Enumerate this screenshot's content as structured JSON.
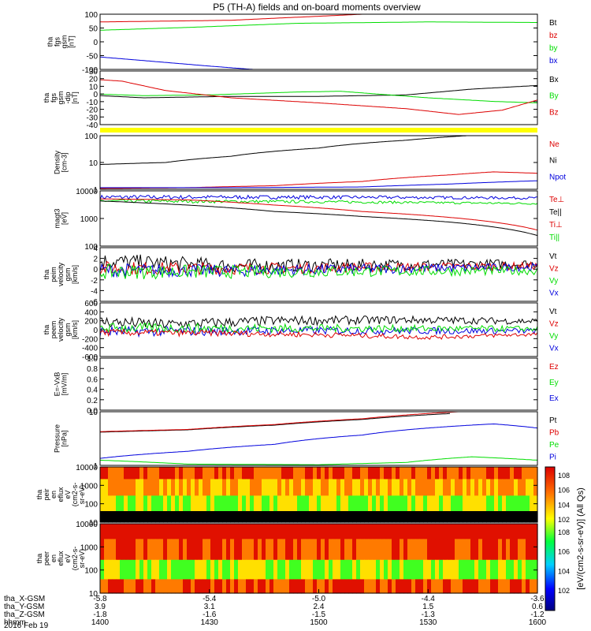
{
  "title": "P5 (TH-A) fields and on-board moments overview",
  "xaxis": {
    "rows": [
      {
        "label": "tha_X-GSM",
        "values": [
          "-5.8",
          "-5.4",
          "-5.0",
          "-4.4",
          "-3.6"
        ]
      },
      {
        "label": "tha_Y-GSM",
        "values": [
          "3.9",
          "3.1",
          "2.4",
          "1.5",
          "0.6"
        ]
      },
      {
        "label": "tha_Z-GSM",
        "values": [
          "-1.8",
          "-1.6",
          "-1.5",
          "-1.3",
          "-1.2"
        ]
      },
      {
        "label": "hhmm",
        "values": [
          "1400",
          "1430",
          "1500",
          "1530",
          "1600"
        ]
      }
    ],
    "date": "2016 Feb 19"
  },
  "colors": {
    "black": "#000000",
    "red": "#dd0000",
    "green": "#00dd00",
    "blue": "#0000dd",
    "yellow": "#ffff00"
  },
  "colorbar_label": "[eV/(cm2-s-sr-eV)] (All Qs)",
  "chart_data": [
    {
      "type": "line",
      "id": "p1",
      "ylabel": [
        "tha",
        "fgs",
        "gsm",
        "[nT]"
      ],
      "ylim": [
        -100,
        100
      ],
      "yticks": [
        "100",
        "50",
        "0",
        "-50",
        "-100"
      ],
      "legend": [
        {
          "text": "Bt",
          "color": "#000000"
        },
        {
          "text": "bz",
          "color": "#dd0000"
        },
        {
          "text": "by",
          "color": "#00dd00"
        },
        {
          "text": "bx",
          "color": "#0000dd"
        }
      ],
      "series": [
        {
          "color": "#000000",
          "x": [
            0,
            1
          ],
          "y": [
            100,
            100
          ]
        },
        {
          "color": "#dd0000",
          "x": [
            0,
            0.3,
            0.6,
            1
          ],
          "y": [
            72,
            78,
            100,
            100
          ]
        },
        {
          "color": "#00dd00",
          "x": [
            0,
            0.2,
            0.45,
            0.75,
            1
          ],
          "y": [
            42,
            52,
            67,
            72,
            70
          ]
        },
        {
          "color": "#0000dd",
          "x": [
            0,
            0.1,
            0.25,
            0.35
          ],
          "y": [
            -55,
            -68,
            -88,
            -100
          ]
        }
      ]
    },
    {
      "type": "line",
      "id": "p2",
      "ylabel": [
        "tha",
        "fgs",
        "gsm",
        "-dip",
        "[nT]"
      ],
      "ylim": [
        -42,
        32
      ],
      "yticks": [
        "30",
        "20",
        "10",
        "0",
        "-10",
        "-20",
        "-30",
        "-40"
      ],
      "legend": [
        {
          "text": "Bx",
          "color": "#000000"
        },
        {
          "text": "By",
          "color": "#00dd00"
        },
        {
          "text": "Bz",
          "color": "#dd0000"
        }
      ],
      "series": [
        {
          "color": "#000000",
          "x": [
            0,
            0.1,
            0.3,
            0.5,
            0.7,
            0.85,
            1
          ],
          "y": [
            -2,
            -5,
            -3,
            -3,
            -1,
            7,
            12
          ]
        },
        {
          "color": "#00dd00",
          "x": [
            0,
            0.1,
            0.25,
            0.45,
            0.55,
            0.75,
            0.9,
            1
          ],
          "y": [
            0,
            -2,
            -1,
            3,
            4,
            -5,
            -10,
            -12
          ]
        },
        {
          "color": "#dd0000",
          "x": [
            0,
            0.05,
            0.15,
            0.3,
            0.5,
            0.7,
            0.82,
            0.92,
            1
          ],
          "y": [
            20,
            18,
            5,
            -5,
            -12,
            -20,
            -28,
            -22,
            -8
          ]
        }
      ]
    },
    {
      "type": "line",
      "id": "p3",
      "scale": "log",
      "ylabel": [
        "Density",
        "[cm-3]"
      ],
      "ylim": [
        0.5,
        200
      ],
      "yticks": [
        "100",
        "10",
        "1"
      ],
      "legend": [
        {
          "text": "Ne",
          "color": "#dd0000"
        },
        {
          "text": "Ni",
          "color": "#000000"
        },
        {
          "text": "Npot",
          "color": "#0000dd"
        }
      ],
      "series": [
        {
          "color": "#000000",
          "x": [
            0,
            0.15,
            0.3,
            0.5,
            0.7,
            0.84
          ],
          "y": [
            8,
            10,
            20,
            50,
            120,
            200
          ]
        },
        {
          "color": "#dd0000",
          "x": [
            0,
            0.2,
            0.4,
            0.6,
            0.8,
            0.9,
            1
          ],
          "y": [
            0.55,
            0.6,
            0.75,
            1.2,
            2.5,
            3.5,
            3
          ]
        },
        {
          "color": "#0000dd",
          "x": [
            0,
            0.3,
            0.6,
            0.8,
            1
          ],
          "y": [
            0.6,
            0.6,
            0.65,
            0.9,
            1.3
          ]
        }
      ]
    },
    {
      "type": "line",
      "id": "p4",
      "scale": "log",
      "ylabel": [
        "magt3",
        "[eV]"
      ],
      "ylim": [
        100,
        12000
      ],
      "yticks": [
        "10000",
        "1000",
        "100"
      ],
      "legend": [
        {
          "text": "Te⊥",
          "color": "#dd0000"
        },
        {
          "text": "Te||",
          "color": "#000000"
        },
        {
          "text": "Ti⊥",
          "color": "#dd0000"
        },
        {
          "text": "Ti||",
          "color": "#00dd00"
        }
      ],
      "series": [
        {
          "color": "#0000dd",
          "x": [
            0,
            0.5,
            1
          ],
          "y": [
            7000,
            7000,
            6500
          ],
          "noise": 0.15
        },
        {
          "color": "#00dd00",
          "x": [
            0,
            0.5,
            1
          ],
          "y": [
            5000,
            4700,
            4000
          ],
          "noise": 0.12
        },
        {
          "color": "#dd0000",
          "x": [
            0,
            0.2,
            0.4,
            0.6,
            0.8,
            1
          ],
          "y": [
            6000,
            5500,
            3500,
            2000,
            1200,
            400
          ]
        },
        {
          "color": "#000000",
          "x": [
            0,
            0.2,
            0.4,
            0.6,
            0.8,
            1
          ],
          "y": [
            5000,
            3500,
            2000,
            1300,
            800,
            250
          ]
        }
      ]
    },
    {
      "type": "line",
      "id": "p5",
      "ylabel": [
        "tha",
        "peim",
        "velocity",
        "gsm",
        "[km/s]"
      ],
      "ylim": [
        -6,
        4
      ],
      "yticks": [
        "4",
        "2",
        "0",
        "-2",
        "-4",
        "-6"
      ],
      "legend": [
        {
          "text": "Vt",
          "color": "#000000"
        },
        {
          "text": "Vz",
          "color": "#dd0000"
        },
        {
          "text": "Vy",
          "color": "#00dd00"
        },
        {
          "text": "Vx",
          "color": "#0000dd"
        }
      ],
      "series": [
        {
          "color": "#000000",
          "x": [
            0,
            0.3,
            1
          ],
          "y": [
            1.5,
            0.6,
            1.0
          ],
          "noise": 1.2
        },
        {
          "color": "#dd0000",
          "x": [
            0,
            0.3,
            1
          ],
          "y": [
            0.2,
            0.1,
            0.6
          ],
          "noise": 1.0
        },
        {
          "color": "#0000dd",
          "x": [
            0,
            0.3,
            1
          ],
          "y": [
            -0.2,
            -0.3,
            0.4
          ],
          "noise": 1.0
        },
        {
          "color": "#00dd00",
          "x": [
            0,
            0.3,
            1
          ],
          "y": [
            -0.5,
            -0.5,
            -0.3
          ],
          "noise": 1.1
        }
      ]
    },
    {
      "type": "line",
      "id": "p6",
      "ylabel": [
        "tha",
        "peem",
        "velocity",
        "gsm",
        "[km/s]"
      ],
      "ylim": [
        -600,
        600
      ],
      "yticks": [
        "600",
        "400",
        "200",
        "0",
        "-200",
        "-400",
        "-600"
      ],
      "legend": [
        {
          "text": "Vt",
          "color": "#000000"
        },
        {
          "text": "Vz",
          "color": "#dd0000"
        },
        {
          "text": "Vy",
          "color": "#00dd00"
        },
        {
          "text": "Vx",
          "color": "#0000dd"
        }
      ],
      "series": [
        {
          "color": "#000000",
          "x": [
            0,
            0.15,
            0.4,
            0.7,
            1
          ],
          "y": [
            180,
            120,
            200,
            220,
            190
          ],
          "noise": 100
        },
        {
          "color": "#0000dd",
          "x": [
            0,
            0.5,
            1
          ],
          "y": [
            -40,
            -20,
            -30
          ],
          "noise": 90
        },
        {
          "color": "#00dd00",
          "x": [
            0,
            0.5,
            1
          ],
          "y": [
            40,
            30,
            20
          ],
          "noise": 90
        },
        {
          "color": "#dd0000",
          "x": [
            0,
            0.3,
            0.55,
            0.75,
            1
          ],
          "y": [
            -60,
            -80,
            -120,
            -170,
            -100
          ],
          "noise": 60
        }
      ]
    },
    {
      "type": "line",
      "id": "p7",
      "ylabel": [
        "E=-VxB",
        "[mV/m]"
      ],
      "ylim": [
        0,
        1
      ],
      "yticks": [
        "1.0",
        "0.8",
        "0.6",
        "0.4",
        "0.2",
        "0.0"
      ],
      "legend": [
        {
          "text": "Ez",
          "color": "#dd0000"
        },
        {
          "text": "Ey",
          "color": "#00dd00"
        },
        {
          "text": "Ex",
          "color": "#0000dd"
        }
      ],
      "series": []
    },
    {
      "type": "line",
      "id": "p8",
      "scale": "log",
      "ylabel": [
        "Pressure",
        "[nPa]"
      ],
      "ylim": [
        0.15,
        30
      ],
      "yticks": [
        "10",
        "1"
      ],
      "legend": [
        {
          "text": "Pt",
          "color": "#000000"
        },
        {
          "text": "Pb",
          "color": "#dd0000"
        },
        {
          "text": "Pe",
          "color": "#00dd00"
        },
        {
          "text": "Pi",
          "color": "#0000dd"
        }
      ],
      "series": [
        {
          "color": "#000000",
          "x": [
            0,
            0.2,
            0.4,
            0.6,
            0.8
          ],
          "y": [
            4,
            5,
            8,
            14,
            25
          ]
        },
        {
          "color": "#dd0000",
          "x": [
            0,
            0.2,
            0.4,
            0.6,
            0.82
          ],
          "y": [
            4.2,
            5.2,
            8.5,
            15,
            30
          ]
        },
        {
          "color": "#0000dd",
          "x": [
            0,
            0.2,
            0.4,
            0.6,
            0.8,
            0.9,
            1
          ],
          "y": [
            0.3,
            0.6,
            1.2,
            3,
            7,
            9,
            6
          ]
        },
        {
          "color": "#00dd00",
          "x": [
            0,
            0.2,
            0.5,
            0.7,
            0.85,
            1
          ],
          "y": [
            0.25,
            0.17,
            0.16,
            0.2,
            0.35,
            0.25
          ]
        }
      ]
    },
    {
      "type": "heatmap",
      "id": "p9",
      "ylabel": [
        "tha",
        "peir",
        "en",
        "eflux",
        "eV",
        "(cm2-s-",
        "sr-eV)"
      ],
      "yticks": [
        "10000",
        "1000",
        "100",
        "10"
      ],
      "colorbar_ticks": [
        "10^8",
        "10^6",
        "10^4",
        "10^2"
      ],
      "rows_top_to_bottom": [
        {
          "band": "10000-30000",
          "levels": [
            "red",
            "orange"
          ]
        },
        {
          "band": "2000-10000",
          "levels": [
            "orange",
            "yellow"
          ]
        },
        {
          "band": "300-2000",
          "levels": [
            "yellow",
            "green"
          ]
        },
        {
          "band": "10-300",
          "levels": [
            "black"
          ]
        }
      ]
    },
    {
      "type": "heatmap",
      "id": "p10",
      "ylabel": [
        "tha",
        "peer",
        "en",
        "eflux",
        "eV",
        "(cm2-s-",
        "sr-eV)"
      ],
      "yticks": [
        "10000",
        "1000",
        "100",
        "10"
      ],
      "colorbar_ticks": [
        "10^8",
        "10^6",
        "10^4",
        "10^2"
      ],
      "rows_top_to_bottom": [
        {
          "band": "3000-30000",
          "levels": [
            "red"
          ]
        },
        {
          "band": "500-3000",
          "levels": [
            "orange",
            "red"
          ]
        },
        {
          "band": "30-500",
          "levels": [
            "yellow",
            "green"
          ]
        },
        {
          "band": "5-30",
          "levels": [
            "orange",
            "red"
          ]
        }
      ]
    }
  ]
}
